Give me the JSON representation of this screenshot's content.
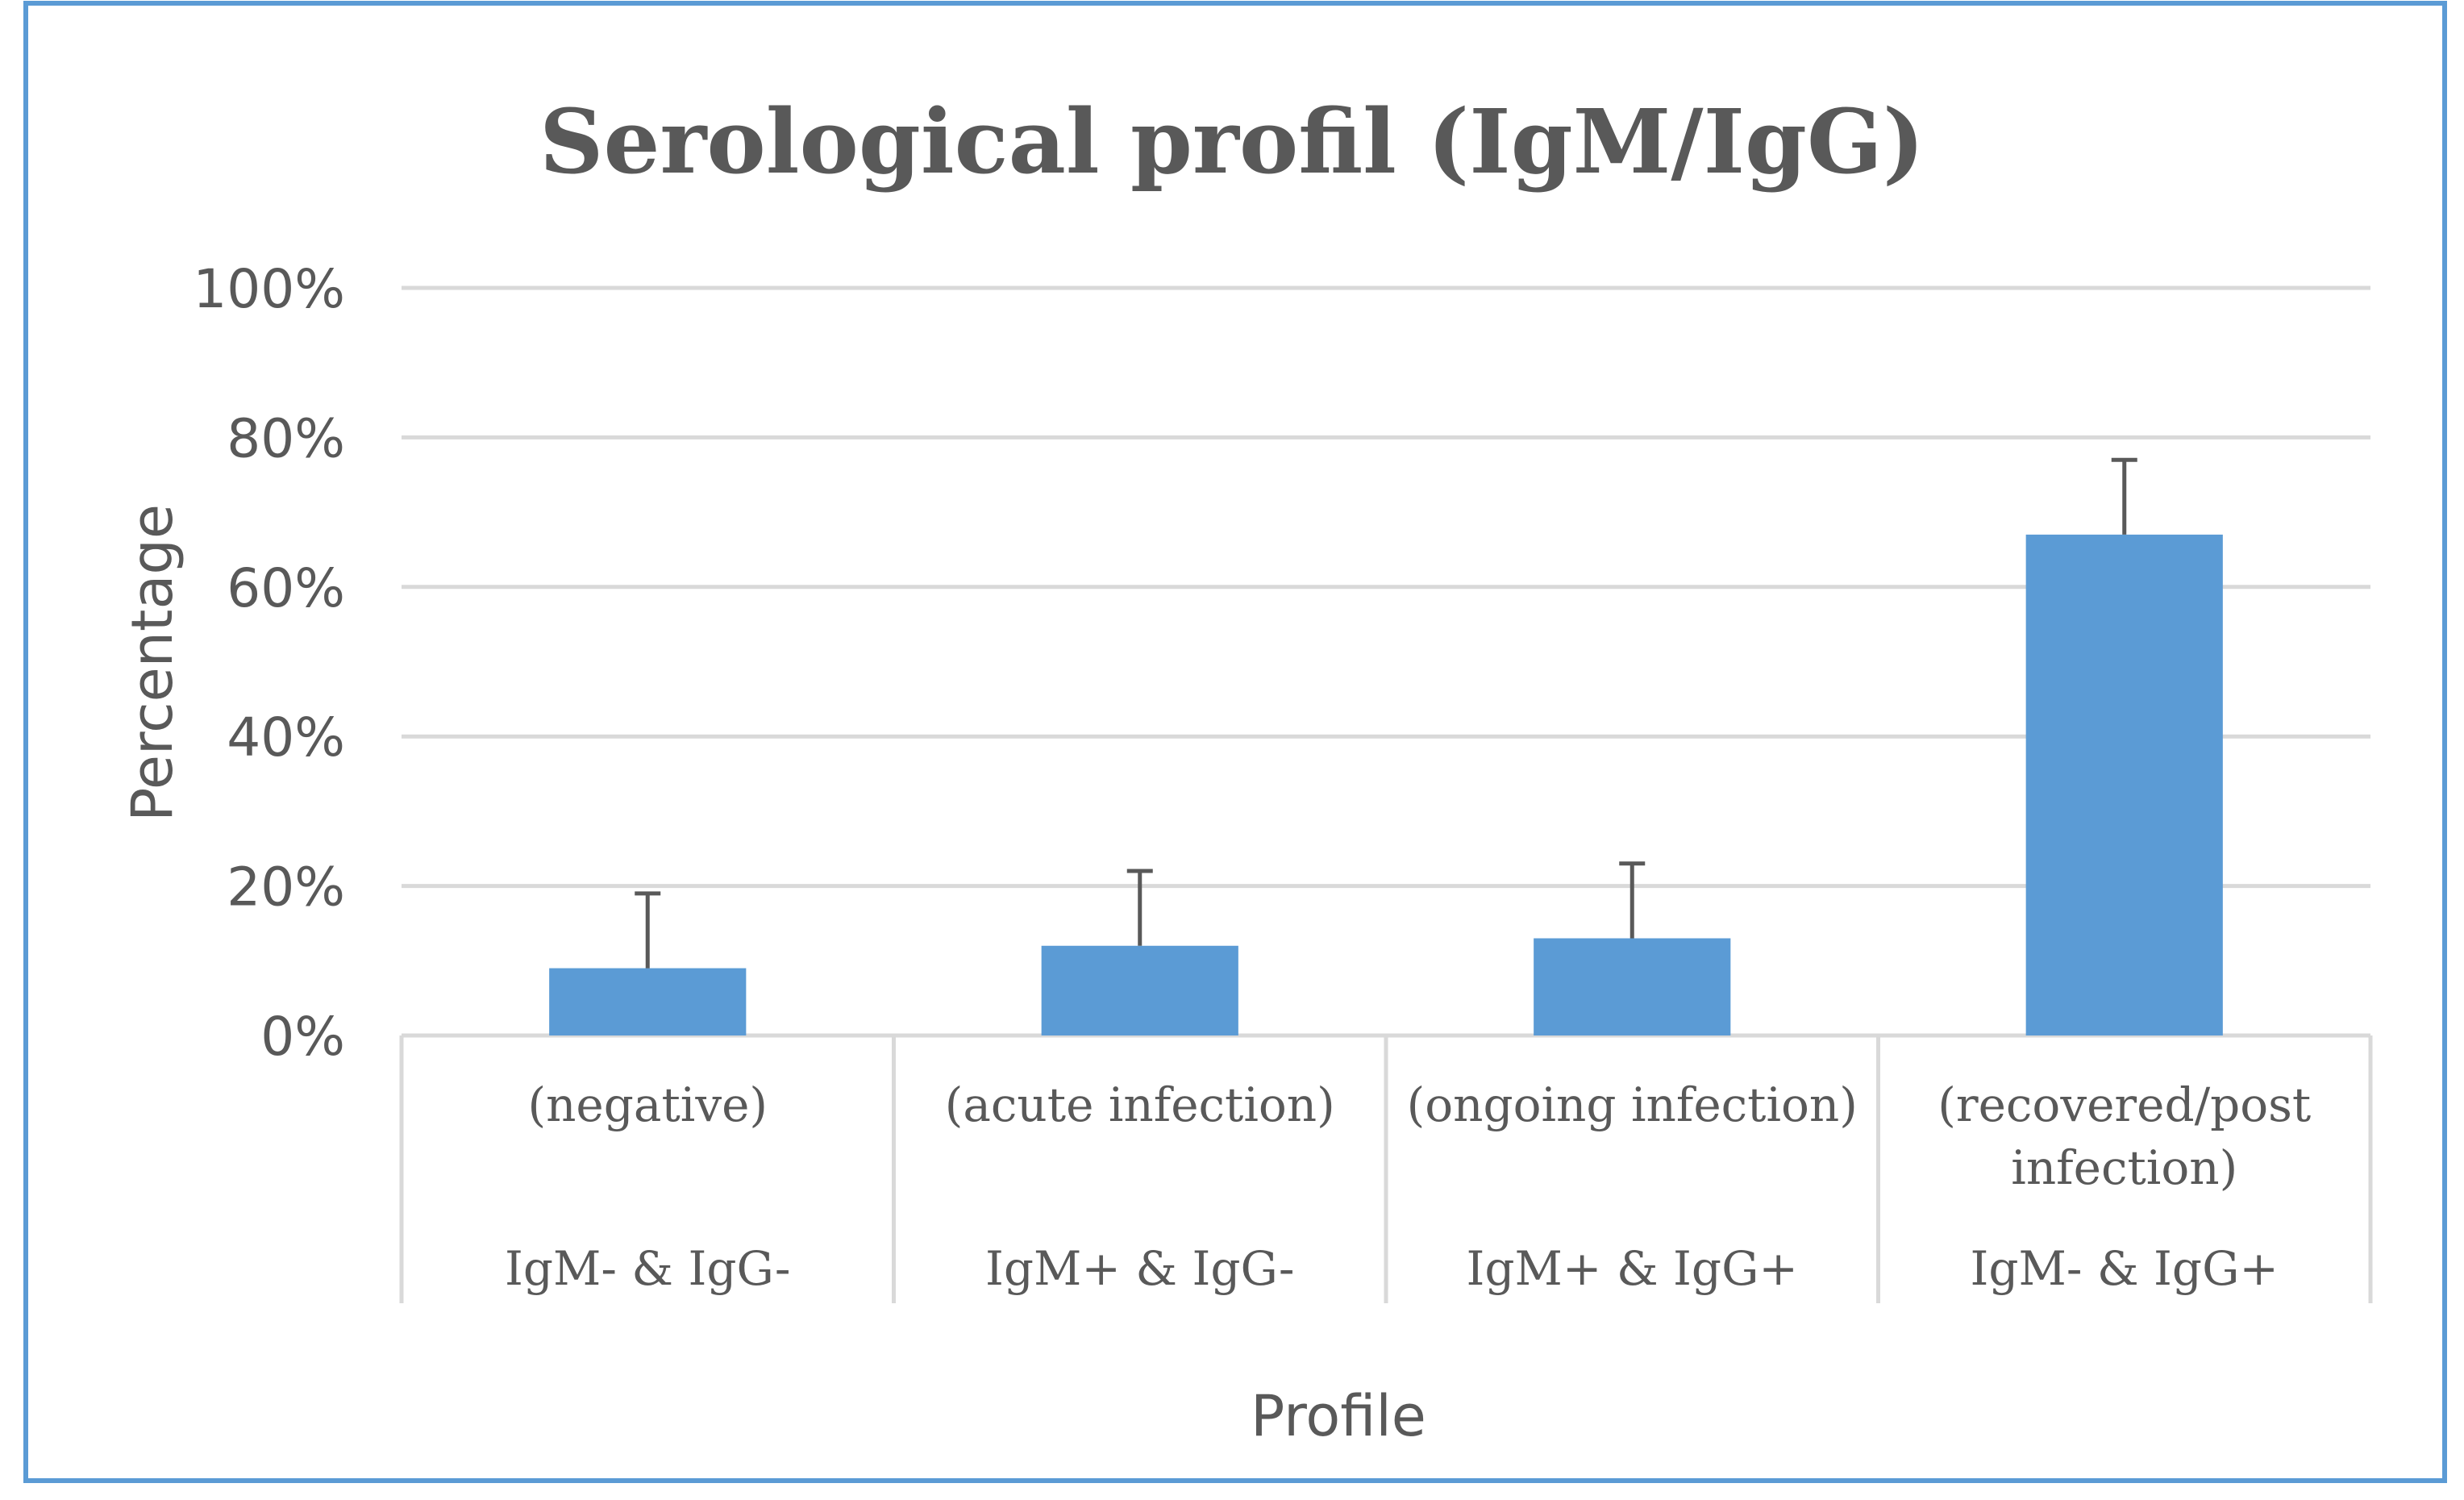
{
  "chart_data": {
    "type": "bar",
    "title": "Serological profil (IgM/IgG)",
    "xlabel": "Profile",
    "ylabel": "Percentage",
    "ylim": [
      0,
      100
    ],
    "yticks": [
      "0%",
      "20%",
      "40%",
      "60%",
      "80%",
      "100%"
    ],
    "ytick_values": [
      0,
      20,
      40,
      60,
      80,
      100
    ],
    "grid": true,
    "legend": "none",
    "categories": [
      {
        "group": "IgM- & IgG-",
        "sub": [
          "(negative)"
        ]
      },
      {
        "group": "IgM+ & IgG-",
        "sub": [
          "(acute infection)"
        ]
      },
      {
        "group": "IgM+ & IgG+",
        "sub": [
          "(ongoing infection)"
        ]
      },
      {
        "group": "IgM- & IgG+",
        "sub": [
          "(recovered/post",
          "infection)"
        ]
      }
    ],
    "values": [
      9,
      12,
      13,
      67
    ],
    "error_upper": [
      10,
      10,
      10,
      10
    ],
    "colors": {
      "bar": "#5b9bd5",
      "grid": "#d9d9d9",
      "text": "#595959",
      "border": "#5b9bd5",
      "error": "#595959"
    }
  }
}
